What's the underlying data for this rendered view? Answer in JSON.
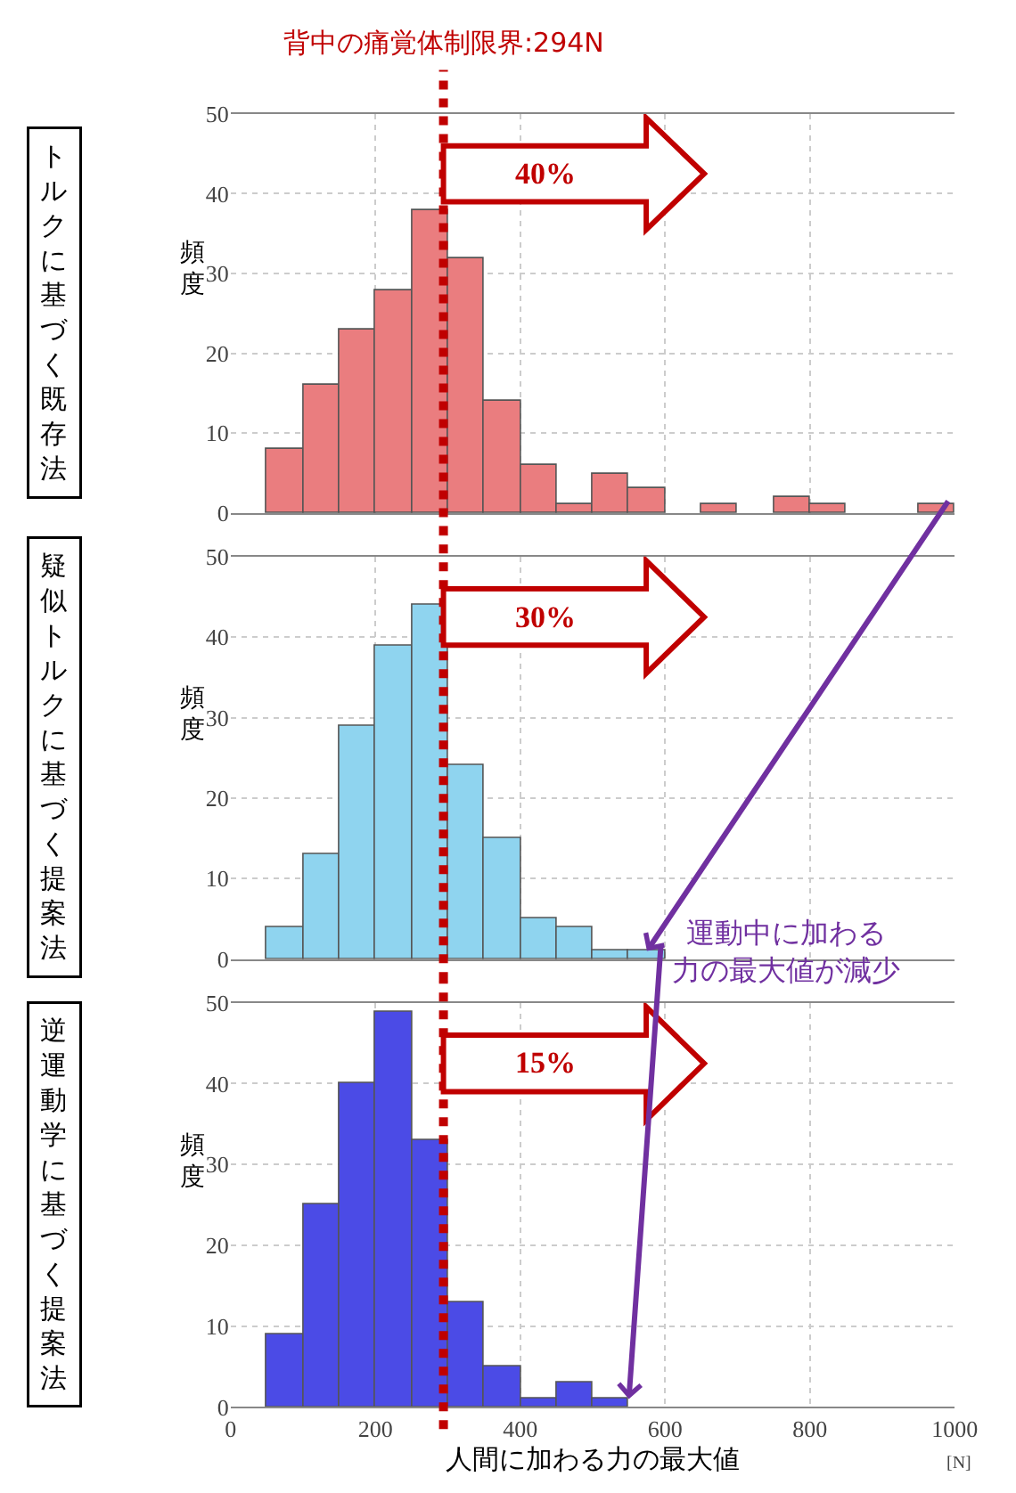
{
  "chart_data": [
    {
      "type": "histogram",
      "title": "トルクに基づく既存法",
      "ylabel": "頻度",
      "color": "#ea7d7f",
      "bins": [
        50,
        100,
        150,
        200,
        250,
        300,
        350,
        400,
        450,
        500,
        550,
        600,
        650,
        700,
        750,
        800,
        850,
        900,
        950,
        1000
      ],
      "values": [
        8,
        16,
        23,
        28,
        38,
        32,
        14,
        6,
        1,
        5,
        3,
        0,
        1,
        0,
        2,
        1,
        0,
        0,
        1
      ],
      "xlim": [
        0,
        1000
      ],
      "ylim": [
        0,
        50
      ],
      "xticks": [
        0,
        200,
        400,
        600,
        800,
        1000
      ],
      "yticks": [
        0,
        10,
        20,
        30,
        40,
        50
      ],
      "grid": true,
      "tick_labels": "y",
      "ref_lines": [
        {
          "axis": "x",
          "value": 294,
          "label": "背中の痛覚体制限界:294N",
          "color": "#c00000",
          "line_style": "dotted"
        }
      ],
      "annotations": [
        "40%"
      ]
    },
    {
      "type": "histogram",
      "title": "疑似トルクに基づく提案法",
      "ylabel": "頻度",
      "color": "#8fd4ef",
      "bins": [
        50,
        100,
        150,
        200,
        250,
        300,
        350,
        400,
        450,
        500,
        550,
        600
      ],
      "values": [
        4,
        13,
        29,
        39,
        44,
        24,
        15,
        5,
        4,
        1,
        1
      ],
      "xlim": [
        0,
        1000
      ],
      "ylim": [
        0,
        50
      ],
      "xticks": [
        0,
        200,
        400,
        600,
        800,
        1000
      ],
      "yticks": [
        0,
        10,
        20,
        30,
        40,
        50
      ],
      "grid": true,
      "tick_labels": "y",
      "ref_lines": [
        {
          "axis": "x",
          "value": 294,
          "label": null,
          "color": "#c00000",
          "line_style": "dotted"
        }
      ],
      "annotations": [
        "30%",
        {
          "text": "運動中に加わる力の最大値が減少",
          "x": 575,
          "y": 1
        }
      ]
    },
    {
      "type": "histogram",
      "title": "逆運動学に基づく提案法",
      "ylabel": "頻度",
      "xlabel": "人間に加わる力の最大値",
      "color": "#4b4be6",
      "bins": [
        50,
        100,
        150,
        200,
        250,
        300,
        350,
        400,
        450,
        500,
        550
      ],
      "values": [
        9,
        25,
        40,
        49,
        33,
        13,
        5,
        1,
        3,
        1
      ],
      "xlim": [
        0,
        1000
      ],
      "ylim": [
        0,
        50
      ],
      "xticks": [
        0,
        200,
        400,
        600,
        800,
        1000
      ],
      "yticks": [
        0,
        10,
        20,
        30,
        40,
        50
      ],
      "grid": true,
      "ref_lines": [
        {
          "axis": "x",
          "value": 294,
          "label": null,
          "color": "#c00000",
          "line_style": "dotted"
        }
      ],
      "annotations": [
        "15%",
        "[N]"
      ]
    }
  ]
}
